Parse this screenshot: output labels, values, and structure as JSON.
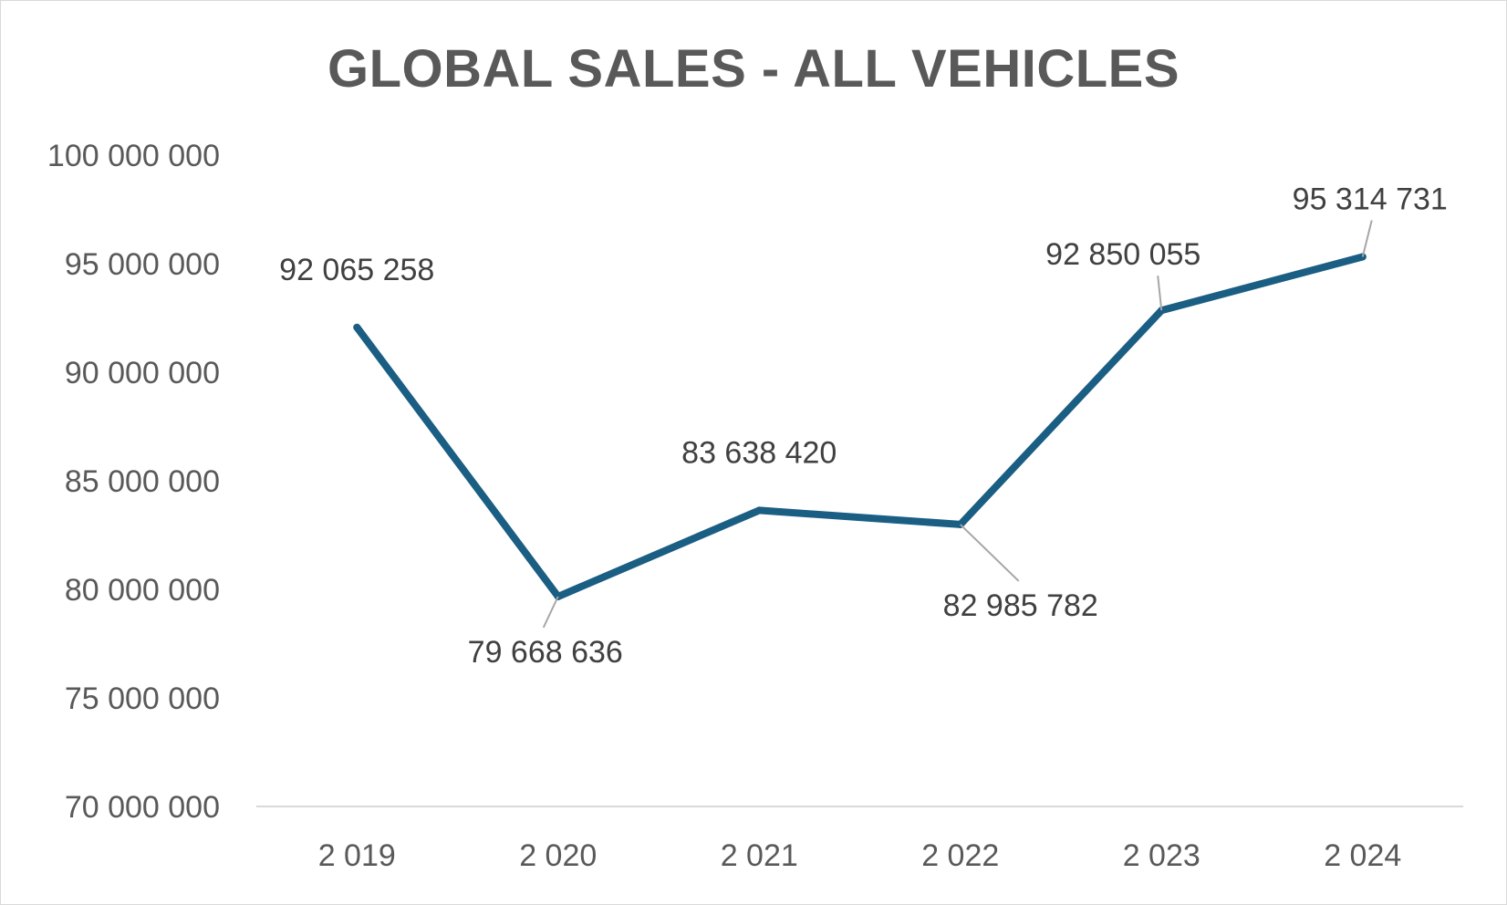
{
  "colors": {
    "series": "#1b5e83",
    "axis_line": "#d9d9d9",
    "text": "#595959"
  },
  "chart_data": {
    "type": "line",
    "title": "GLOBAL SALES - ALL VEHICLES",
    "xlabel": "",
    "ylabel": "",
    "categories": [
      "2 019",
      "2 020",
      "2 021",
      "2 022",
      "2 023",
      "2 024"
    ],
    "series": [
      {
        "values": [
          92065258,
          79668636,
          83638420,
          82985782,
          92850055,
          95314731
        ],
        "data_labels": [
          "92 065 258",
          "79 668 636",
          "83 638 420",
          "82 985 782",
          "92 850 055",
          "95 314 731"
        ]
      }
    ],
    "ylim": [
      70000000,
      100000000
    ],
    "y_ticks": [
      70000000,
      75000000,
      80000000,
      85000000,
      90000000,
      95000000,
      100000000
    ],
    "y_tick_labels": [
      "70 000 000",
      "75 000 000",
      "80 000 000",
      "85 000 000",
      "90 000 000",
      "95 000 000",
      "100 000 000"
    ],
    "grid": false,
    "legend": "none"
  }
}
